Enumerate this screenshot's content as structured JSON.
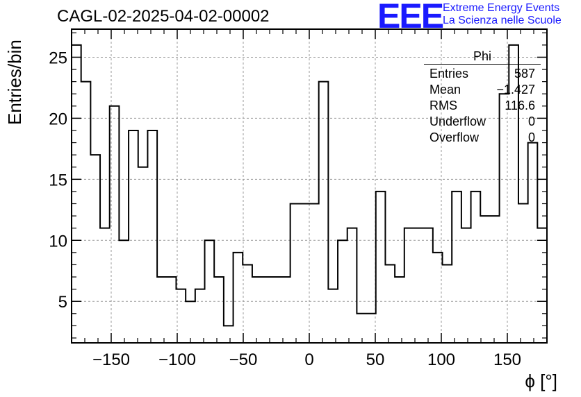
{
  "title": "CAGL-02-2025-04-02-00002",
  "logo": {
    "mark": "EEE",
    "line1": "Extreme Energy Events",
    "line2": "La Scienza nelle Scuole"
  },
  "stats_box": {
    "title": "Phi",
    "rows": [
      {
        "label": "Entries",
        "value": "587"
      },
      {
        "label": "Mean",
        "value": "−1.427"
      },
      {
        "label": "RMS",
        "value": "116.6"
      },
      {
        "label": "Underflow",
        "value": "0"
      },
      {
        "label": "Overflow",
        "value": "0"
      }
    ]
  },
  "chart_data": {
    "type": "bar",
    "style": "step-histogram",
    "xlabel": "ϕ [°]",
    "ylabel": "Entries/bin",
    "xlim": [
      -180,
      180
    ],
    "ylim": [
      1.6,
      27.3
    ],
    "grid": true,
    "bin_width": 7.2,
    "x_ticks": [
      -150,
      -100,
      -50,
      0,
      50,
      100,
      150
    ],
    "x_tick_labels": [
      "−150",
      "−100",
      "−50",
      "0",
      "50",
      "100",
      "150"
    ],
    "y_ticks": [
      5,
      10,
      15,
      20,
      25
    ],
    "y_tick_labels": [
      "5",
      "10",
      "15",
      "20",
      "25"
    ],
    "values": [
      26,
      23,
      17,
      11,
      21,
      10,
      19,
      16,
      19,
      7,
      7,
      6,
      5,
      6,
      10,
      7,
      3,
      9,
      8,
      7,
      7,
      7,
      7,
      13,
      13,
      13,
      23,
      6,
      10,
      11,
      4,
      4,
      14,
      8,
      7,
      11,
      11,
      11,
      9,
      8,
      14,
      11,
      14,
      12,
      12,
      22,
      26,
      13,
      18,
      11
    ]
  }
}
